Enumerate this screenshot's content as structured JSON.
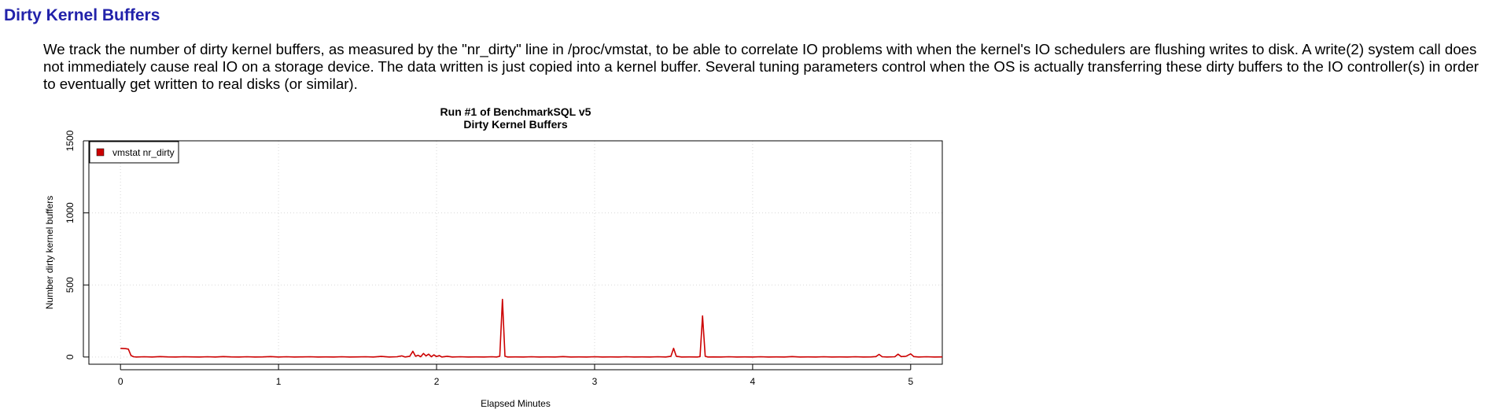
{
  "section": {
    "title": "Dirty Kernel Buffers",
    "description": "We track the number of dirty kernel buffers, as measured by the \"nr_dirty\" line in /proc/vmstat, to be able to correlate IO problems with when the kernel's IO schedulers are flushing writes to disk. A write(2) system call does not immediately cause real IO on a storage device. The data written is just copied into a kernel buffer. Several tuning parameters control when the OS is actually transferring these dirty buffers to the IO controller(s) in order to eventually get written to real disks (or similar)."
  },
  "chart_data": {
    "type": "line",
    "title": "Run #1 of BenchmarkSQL v5",
    "subtitle": "Dirty Kernel Buffers",
    "xlabel": "Elapsed Minutes",
    "ylabel": "Number dirty kernel buffers",
    "xlim": [
      -0.2,
      5.2
    ],
    "ylim": [
      -50,
      1500
    ],
    "xticks": [
      0,
      1,
      2,
      3,
      4,
      5
    ],
    "yticks": [
      0,
      500,
      1000,
      1500
    ],
    "grid": true,
    "legend_position": "top-left",
    "series": [
      {
        "name": "vmstat nr_dirty",
        "color": "#cc0000",
        "points": [
          [
            0.0,
            60
          ],
          [
            0.033,
            58
          ],
          [
            0.05,
            55
          ],
          [
            0.067,
            10
          ],
          [
            0.083,
            2
          ],
          [
            0.1,
            0
          ],
          [
            0.15,
            2
          ],
          [
            0.2,
            0
          ],
          [
            0.25,
            3
          ],
          [
            0.3,
            1
          ],
          [
            0.35,
            0
          ],
          [
            0.4,
            2
          ],
          [
            0.45,
            1
          ],
          [
            0.5,
            0
          ],
          [
            0.55,
            2
          ],
          [
            0.6,
            0
          ],
          [
            0.65,
            3
          ],
          [
            0.7,
            1
          ],
          [
            0.75,
            0
          ],
          [
            0.8,
            2
          ],
          [
            0.85,
            0
          ],
          [
            0.9,
            1
          ],
          [
            0.95,
            3
          ],
          [
            1.0,
            0
          ],
          [
            1.05,
            2
          ],
          [
            1.1,
            0
          ],
          [
            1.15,
            1
          ],
          [
            1.2,
            2
          ],
          [
            1.25,
            0
          ],
          [
            1.3,
            1
          ],
          [
            1.35,
            0
          ],
          [
            1.4,
            2
          ],
          [
            1.45,
            0
          ],
          [
            1.5,
            1
          ],
          [
            1.55,
            2
          ],
          [
            1.6,
            0
          ],
          [
            1.65,
            4
          ],
          [
            1.7,
            0
          ],
          [
            1.75,
            2
          ],
          [
            1.78,
            8
          ],
          [
            1.8,
            0
          ],
          [
            1.83,
            5
          ],
          [
            1.85,
            40
          ],
          [
            1.867,
            5
          ],
          [
            1.883,
            12
          ],
          [
            1.9,
            2
          ],
          [
            1.917,
            25
          ],
          [
            1.933,
            8
          ],
          [
            1.95,
            20
          ],
          [
            1.967,
            2
          ],
          [
            1.983,
            15
          ],
          [
            2.0,
            3
          ],
          [
            2.017,
            10
          ],
          [
            2.033,
            0
          ],
          [
            2.067,
            5
          ],
          [
            2.1,
            0
          ],
          [
            2.15,
            2
          ],
          [
            2.2,
            0
          ],
          [
            2.25,
            1
          ],
          [
            2.3,
            0
          ],
          [
            2.35,
            2
          ],
          [
            2.38,
            0
          ],
          [
            2.4,
            5
          ],
          [
            2.417,
            400
          ],
          [
            2.433,
            5
          ],
          [
            2.45,
            0
          ],
          [
            2.5,
            1
          ],
          [
            2.55,
            0
          ],
          [
            2.6,
            2
          ],
          [
            2.65,
            0
          ],
          [
            2.7,
            1
          ],
          [
            2.75,
            0
          ],
          [
            2.8,
            3
          ],
          [
            2.85,
            0
          ],
          [
            2.9,
            1
          ],
          [
            2.95,
            0
          ],
          [
            3.0,
            2
          ],
          [
            3.05,
            0
          ],
          [
            3.1,
            1
          ],
          [
            3.15,
            0
          ],
          [
            3.2,
            2
          ],
          [
            3.25,
            0
          ],
          [
            3.3,
            1
          ],
          [
            3.35,
            0
          ],
          [
            3.4,
            2
          ],
          [
            3.45,
            0
          ],
          [
            3.483,
            5
          ],
          [
            3.5,
            60
          ],
          [
            3.517,
            5
          ],
          [
            3.55,
            0
          ],
          [
            3.6,
            1
          ],
          [
            3.65,
            0
          ],
          [
            3.667,
            3
          ],
          [
            3.683,
            285
          ],
          [
            3.7,
            5
          ],
          [
            3.717,
            0
          ],
          [
            3.75,
            1
          ],
          [
            3.8,
            0
          ],
          [
            3.85,
            2
          ],
          [
            3.9,
            0
          ],
          [
            3.95,
            1
          ],
          [
            4.0,
            0
          ],
          [
            4.05,
            2
          ],
          [
            4.1,
            0
          ],
          [
            4.15,
            1
          ],
          [
            4.2,
            0
          ],
          [
            4.25,
            3
          ],
          [
            4.3,
            0
          ],
          [
            4.35,
            1
          ],
          [
            4.4,
            0
          ],
          [
            4.45,
            2
          ],
          [
            4.5,
            0
          ],
          [
            4.55,
            1
          ],
          [
            4.6,
            0
          ],
          [
            4.65,
            2
          ],
          [
            4.7,
            0
          ],
          [
            4.75,
            1
          ],
          [
            4.78,
            3
          ],
          [
            4.8,
            18
          ],
          [
            4.82,
            2
          ],
          [
            4.85,
            0
          ],
          [
            4.9,
            2
          ],
          [
            4.92,
            20
          ],
          [
            4.94,
            3
          ],
          [
            4.97,
            5
          ],
          [
            5.0,
            22
          ],
          [
            5.02,
            3
          ],
          [
            5.05,
            0
          ],
          [
            5.1,
            2
          ],
          [
            5.15,
            0
          ],
          [
            5.2,
            1
          ]
        ]
      }
    ]
  }
}
